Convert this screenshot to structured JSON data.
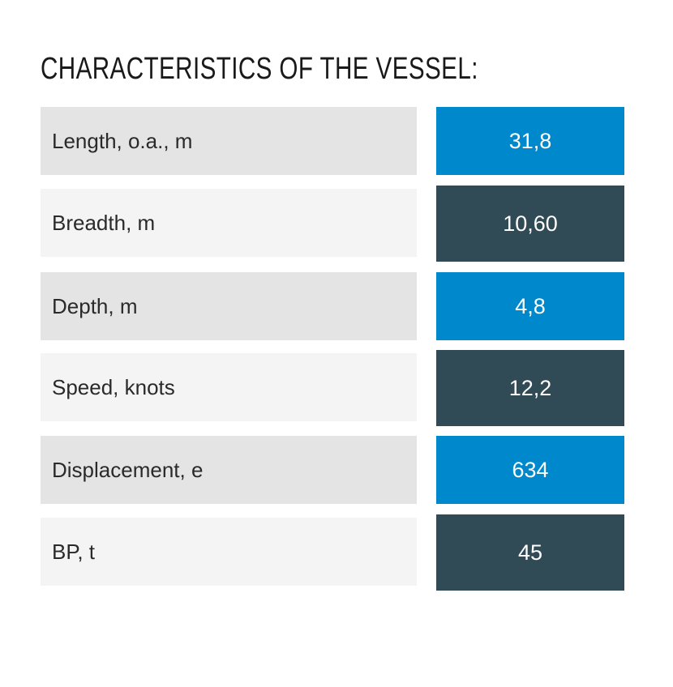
{
  "title": "CHARACTERISTICS OF THE VESSEL:",
  "colors": {
    "blue": "#0088cc",
    "dark": "#304a56",
    "row_light": "#f4f4f4",
    "row_gray": "#e4e4e4"
  },
  "rows": [
    {
      "label": "Length, o.a., m",
      "value": "31,8"
    },
    {
      "label": "Breadth, m",
      "value": "10,60"
    },
    {
      "label": "Depth, m",
      "value": "4,8"
    },
    {
      "label": "Speed, knots",
      "value": "12,2"
    },
    {
      "label": "Displacement, e",
      "value": "634"
    },
    {
      "label": "BP, t",
      "value": "45"
    }
  ]
}
